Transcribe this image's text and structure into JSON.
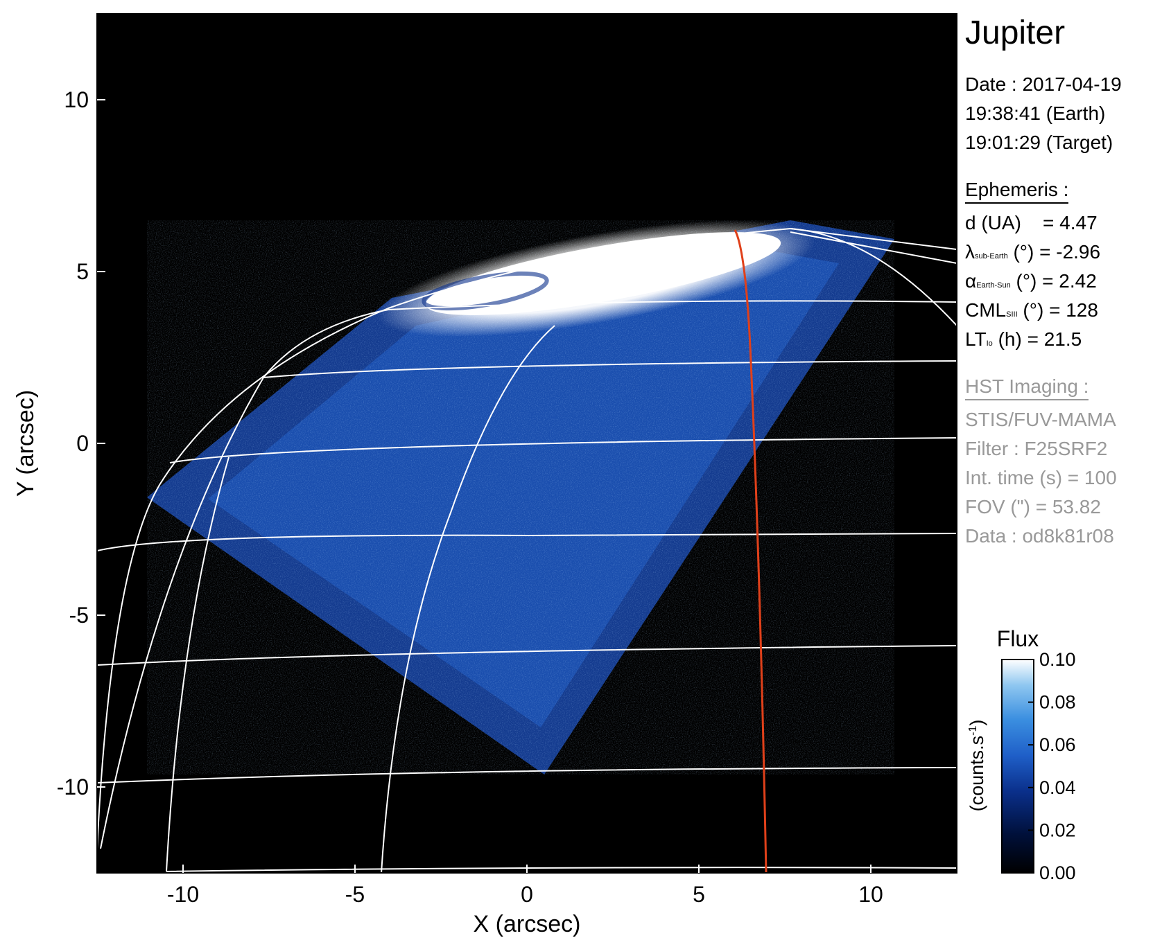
{
  "chart_data": {
    "type": "heatmap",
    "title": "Jupiter",
    "xlabel": "X (arcsec)",
    "ylabel": "Y (arcsec)",
    "xlim": [
      -12.5,
      12.5
    ],
    "ylim": [
      -12.5,
      12.5
    ],
    "xticks": [
      -10,
      -5,
      0,
      5,
      10
    ],
    "yticks": [
      -10,
      -5,
      0,
      5,
      10
    ],
    "x_tick_labels": [
      "-10",
      "-5",
      "0",
      "5",
      "10"
    ],
    "y_tick_labels": [
      "-10",
      "-5",
      "0",
      "5",
      "10"
    ],
    "grid": "planetographic latitude/longitude lines (white)",
    "overlay_line_color": "#e0401a",
    "colorbar": {
      "title": "Flux",
      "unit_label": "(counts.s",
      "unit_exponent": "-1",
      "unit_close": ")",
      "range": [
        0.0,
        0.1
      ],
      "ticks": [
        0.0,
        0.02,
        0.04,
        0.06,
        0.08,
        0.1
      ],
      "tick_labels": [
        "0.00",
        "0.02",
        "0.04",
        "0.06",
        "0.08",
        "0.10"
      ],
      "colormap": [
        "#000000",
        "#00103a",
        "#0a2f8a",
        "#1f5fc8",
        "#3b8fe0",
        "#8fc7f0",
        "#ffffff"
      ]
    }
  },
  "info": {
    "target": "Jupiter",
    "date_line": "Date : 2017-04-19",
    "earth_time": "19:38:41 (Earth)",
    "target_time": "19:01:29 (Target)",
    "ephemeris_heading": "Ephemeris :",
    "distance": {
      "label": "d (UA)",
      "value": "= 4.47"
    },
    "lambda": {
      "symbol": "λ",
      "sub": "sub-Earth",
      "unit": "(°)",
      "value": "= -2.96"
    },
    "alpha": {
      "symbol": "α",
      "sub": "Earth-Sun",
      "unit": "(°)",
      "value": "= 2.42"
    },
    "cml": {
      "symbol": "CML",
      "sub": "SIII",
      "unit": "(°)",
      "value": "= 128"
    },
    "lt": {
      "symbol": "LT",
      "sub": "Io",
      "unit": "(h)",
      "value": "= 21.5"
    },
    "hst_heading": "HST Imaging :",
    "instrument": "STIS/FUV-MAMA",
    "filter": "Filter : F25SRF2",
    "int_time": "Int. time (s) = 100",
    "fov": "FOV (\") = 53.82",
    "dataset": "Data : od8k81r08"
  },
  "colors": {
    "background_plot": "#000000",
    "grid_lines": "#ffffff",
    "meridian_line": "#e0401a",
    "secondary_text": "#999999"
  }
}
